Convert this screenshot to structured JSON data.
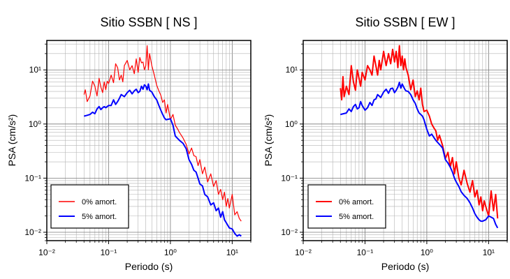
{
  "chart_data": [
    {
      "type": "line",
      "title": "Sitio SSBN [ NS ]",
      "xlabel": "Periodo (s)",
      "ylabel": "PSA (cm/s²)",
      "xscale": "log",
      "yscale": "log",
      "xlim": [
        0.01,
        20
      ],
      "ylim": [
        0.007,
        35
      ],
      "grid": true,
      "legend_position": "bottom-left",
      "xticks": [
        "10⁻²",
        "10⁻¹",
        "10⁰",
        "10¹"
      ],
      "yticks": [
        "10⁻²",
        "10⁻¹",
        "10⁰",
        "10¹"
      ],
      "series": [
        {
          "name": "0% amort.",
          "color": "#ff0000",
          "line_width": 1.2,
          "x": [
            0.04,
            0.042,
            0.045,
            0.05,
            0.055,
            0.06,
            0.065,
            0.07,
            0.075,
            0.08,
            0.085,
            0.09,
            0.095,
            0.1,
            0.11,
            0.12,
            0.13,
            0.14,
            0.15,
            0.16,
            0.17,
            0.18,
            0.2,
            0.22,
            0.24,
            0.26,
            0.28,
            0.3,
            0.32,
            0.34,
            0.36,
            0.38,
            0.4,
            0.42,
            0.44,
            0.46,
            0.5,
            0.55,
            0.6,
            0.65,
            0.7,
            0.75,
            0.8,
            0.85,
            0.9,
            1.0,
            1.1,
            1.2,
            1.3,
            1.4,
            1.5,
            1.6,
            1.8,
            2.0,
            2.2,
            2.4,
            2.6,
            2.8,
            3.0,
            3.3,
            3.6,
            4.0,
            4.5,
            5.0,
            5.5,
            6.0,
            6.5,
            7.0,
            7.5,
            8.0,
            8.5,
            9.0,
            10.0,
            11.0,
            12.0,
            13.0,
            14.0
          ],
          "y": [
            3.5,
            4.3,
            2.6,
            3.3,
            6.2,
            5.0,
            3.3,
            7.0,
            4.8,
            3.8,
            6.0,
            4.3,
            6.2,
            5.6,
            8.0,
            5.8,
            13.0,
            11.0,
            6.5,
            8.0,
            6.0,
            12.0,
            15.0,
            10.0,
            12.0,
            8.5,
            16.0,
            9.0,
            17.0,
            13.5,
            14.0,
            10.0,
            12.0,
            28.0,
            10.0,
            20.0,
            12.0,
            8.0,
            5.2,
            4.1,
            3.4,
            2.5,
            2.8,
            1.6,
            2.3,
            1.2,
            1.5,
            0.95,
            0.82,
            0.7,
            0.62,
            0.55,
            0.42,
            0.28,
            0.36,
            0.26,
            0.25,
            0.17,
            0.22,
            0.12,
            0.16,
            0.085,
            0.12,
            0.07,
            0.09,
            0.05,
            0.062,
            0.04,
            0.055,
            0.03,
            0.042,
            0.028,
            0.05,
            0.021,
            0.024,
            0.018,
            0.016
          ]
        },
        {
          "name": "5% amort.",
          "color": "#0000ff",
          "line_width": 2.0,
          "x": [
            0.04,
            0.045,
            0.05,
            0.055,
            0.06,
            0.065,
            0.07,
            0.075,
            0.08,
            0.085,
            0.09,
            0.1,
            0.11,
            0.12,
            0.13,
            0.14,
            0.15,
            0.16,
            0.18,
            0.2,
            0.22,
            0.24,
            0.26,
            0.28,
            0.3,
            0.32,
            0.34,
            0.36,
            0.38,
            0.4,
            0.42,
            0.44,
            0.46,
            0.5,
            0.55,
            0.6,
            0.65,
            0.7,
            0.75,
            0.8,
            0.85,
            0.9,
            1.0,
            1.1,
            1.2,
            1.4,
            1.6,
            1.8,
            2.0,
            2.2,
            2.4,
            2.6,
            2.8,
            3.0,
            3.3,
            3.6,
            4.0,
            4.5,
            5.0,
            5.5,
            6.0,
            6.5,
            7.0,
            7.5,
            8.0,
            9.0,
            10.0,
            11.0,
            12.0,
            13.0,
            14.0
          ],
          "y": [
            1.4,
            1.45,
            1.5,
            1.65,
            1.55,
            1.9,
            2.1,
            1.85,
            2.0,
            2.1,
            2.0,
            2.2,
            2.2,
            2.8,
            2.3,
            2.6,
            3.0,
            3.5,
            3.2,
            3.8,
            4.2,
            3.6,
            4.1,
            4.4,
            3.8,
            4.0,
            5.0,
            4.4,
            5.3,
            5.0,
            4.3,
            5.5,
            4.2,
            3.9,
            3.2,
            2.8,
            2.2,
            1.8,
            1.5,
            1.3,
            1.2,
            1.22,
            1.25,
            0.95,
            0.6,
            0.5,
            0.44,
            0.35,
            0.22,
            0.18,
            0.14,
            0.13,
            0.1,
            0.078,
            0.072,
            0.05,
            0.045,
            0.032,
            0.035,
            0.025,
            0.028,
            0.019,
            0.024,
            0.017,
            0.015,
            0.012,
            0.0115,
            0.0095,
            0.0085,
            0.009,
            0.0085
          ]
        }
      ]
    },
    {
      "type": "line",
      "title": "Sitio SSBN [ EW ]",
      "xlabel": "Periodo (s)",
      "ylabel": "PSA (cm/s²)",
      "xscale": "log",
      "yscale": "log",
      "xlim": [
        0.01,
        20
      ],
      "ylim": [
        0.007,
        35
      ],
      "grid": true,
      "legend_position": "bottom-left",
      "xticks": [
        "10⁻²",
        "10⁻¹",
        "10⁰",
        "10¹"
      ],
      "yticks": [
        "10⁻²",
        "10⁻¹",
        "10⁰",
        "10¹"
      ],
      "series": [
        {
          "name": "0% amort.",
          "color": "#ff0000",
          "line_width": 2.0,
          "x": [
            0.04,
            0.042,
            0.044,
            0.046,
            0.05,
            0.055,
            0.06,
            0.065,
            0.07,
            0.075,
            0.08,
            0.085,
            0.09,
            0.1,
            0.11,
            0.12,
            0.13,
            0.14,
            0.15,
            0.16,
            0.17,
            0.18,
            0.2,
            0.22,
            0.24,
            0.26,
            0.28,
            0.3,
            0.32,
            0.34,
            0.36,
            0.38,
            0.4,
            0.42,
            0.44,
            0.46,
            0.5,
            0.55,
            0.6,
            0.65,
            0.7,
            0.75,
            0.8,
            0.85,
            0.9,
            1.0,
            1.1,
            1.2,
            1.3,
            1.4,
            1.5,
            1.6,
            1.8,
            2.0,
            2.2,
            2.4,
            2.6,
            2.8,
            3.0,
            3.3,
            3.6,
            4.0,
            4.5,
            5.0,
            5.5,
            6.0,
            6.5,
            7.0,
            7.5,
            8.0,
            8.5,
            9.0,
            10.0,
            11.0,
            12.0,
            13.0,
            14.0
          ],
          "y": [
            4.6,
            2.8,
            7.5,
            3.2,
            5.0,
            3.5,
            12.0,
            6.0,
            4.2,
            10.0,
            7.0,
            5.0,
            9.0,
            6.5,
            12.0,
            10.0,
            8.0,
            18.0,
            12.0,
            8.0,
            15.0,
            10.0,
            22.0,
            12.0,
            20.0,
            13.0,
            24.0,
            14.0,
            22.0,
            11.0,
            28.0,
            12.0,
            18.0,
            10.0,
            16.0,
            11.0,
            8.0,
            4.3,
            6.5,
            3.2,
            4.1,
            2.8,
            4.6,
            2.3,
            1.7,
            1.8,
            1.4,
            1.0,
            0.85,
            0.75,
            0.5,
            0.62,
            0.4,
            0.23,
            0.3,
            0.16,
            0.24,
            0.12,
            0.2,
            0.1,
            0.075,
            0.14,
            0.08,
            0.055,
            0.09,
            0.045,
            0.06,
            0.032,
            0.045,
            0.025,
            0.038,
            0.03,
            0.02,
            0.058,
            0.025,
            0.05,
            0.018
          ]
        },
        {
          "name": "5% amort.",
          "color": "#0000ff",
          "line_width": 2.0,
          "x": [
            0.04,
            0.045,
            0.05,
            0.055,
            0.06,
            0.065,
            0.07,
            0.075,
            0.08,
            0.085,
            0.09,
            0.1,
            0.11,
            0.12,
            0.13,
            0.14,
            0.15,
            0.16,
            0.18,
            0.2,
            0.22,
            0.24,
            0.26,
            0.28,
            0.3,
            0.32,
            0.34,
            0.36,
            0.38,
            0.4,
            0.42,
            0.44,
            0.46,
            0.5,
            0.55,
            0.6,
            0.65,
            0.7,
            0.75,
            0.8,
            0.85,
            0.9,
            1.0,
            1.1,
            1.2,
            1.4,
            1.6,
            1.8,
            2.0,
            2.2,
            2.4,
            2.6,
            2.8,
            3.0,
            3.3,
            3.6,
            4.0,
            4.5,
            5.0,
            5.5,
            6.0,
            6.5,
            7.0,
            7.5,
            8.0,
            9.0,
            10.0,
            11.0,
            12.0,
            13.0,
            14.0
          ],
          "y": [
            1.5,
            1.55,
            1.6,
            1.9,
            1.7,
            2.1,
            2.3,
            1.9,
            2.0,
            2.6,
            2.2,
            1.8,
            2.0,
            2.5,
            2.2,
            2.8,
            2.9,
            3.5,
            3.1,
            3.9,
            4.4,
            3.7,
            4.5,
            4.6,
            3.8,
            4.2,
            4.8,
            5.9,
            4.6,
            5.5,
            4.9,
            4.4,
            4.1,
            4.0,
            3.5,
            2.8,
            2.4,
            1.9,
            1.6,
            1.5,
            1.4,
            1.2,
            0.8,
            0.6,
            0.65,
            0.5,
            0.42,
            0.36,
            0.22,
            0.19,
            0.16,
            0.13,
            0.1,
            0.085,
            0.07,
            0.056,
            0.048,
            0.042,
            0.035,
            0.028,
            0.022,
            0.019,
            0.017,
            0.016,
            0.016,
            0.017,
            0.02,
            0.019,
            0.018,
            0.014,
            0.012
          ]
        }
      ]
    }
  ]
}
